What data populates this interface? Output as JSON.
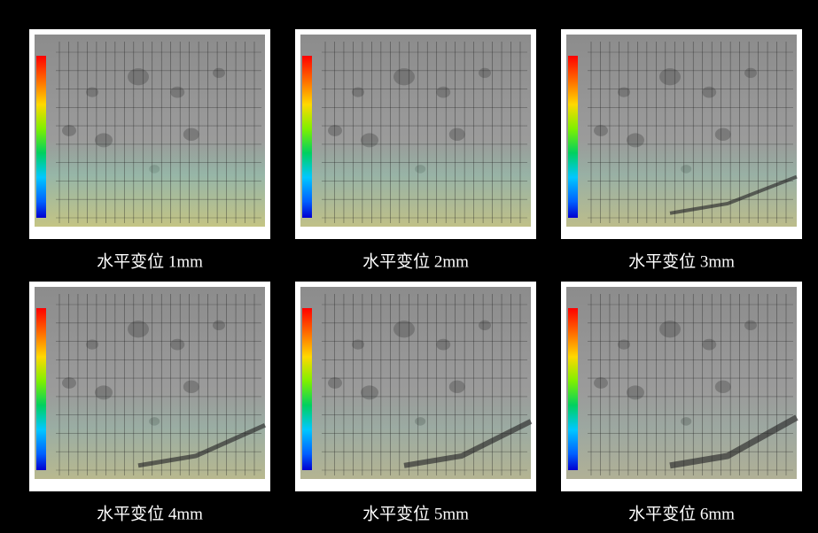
{
  "panels": [
    {
      "caption": "水平变位 1mm"
    },
    {
      "caption": "水平变位 2mm"
    },
    {
      "caption": "水平变位 3mm"
    },
    {
      "caption": "水平变位 4mm"
    },
    {
      "caption": "水平变位 5mm"
    },
    {
      "caption": "水平变位 6mm"
    }
  ]
}
